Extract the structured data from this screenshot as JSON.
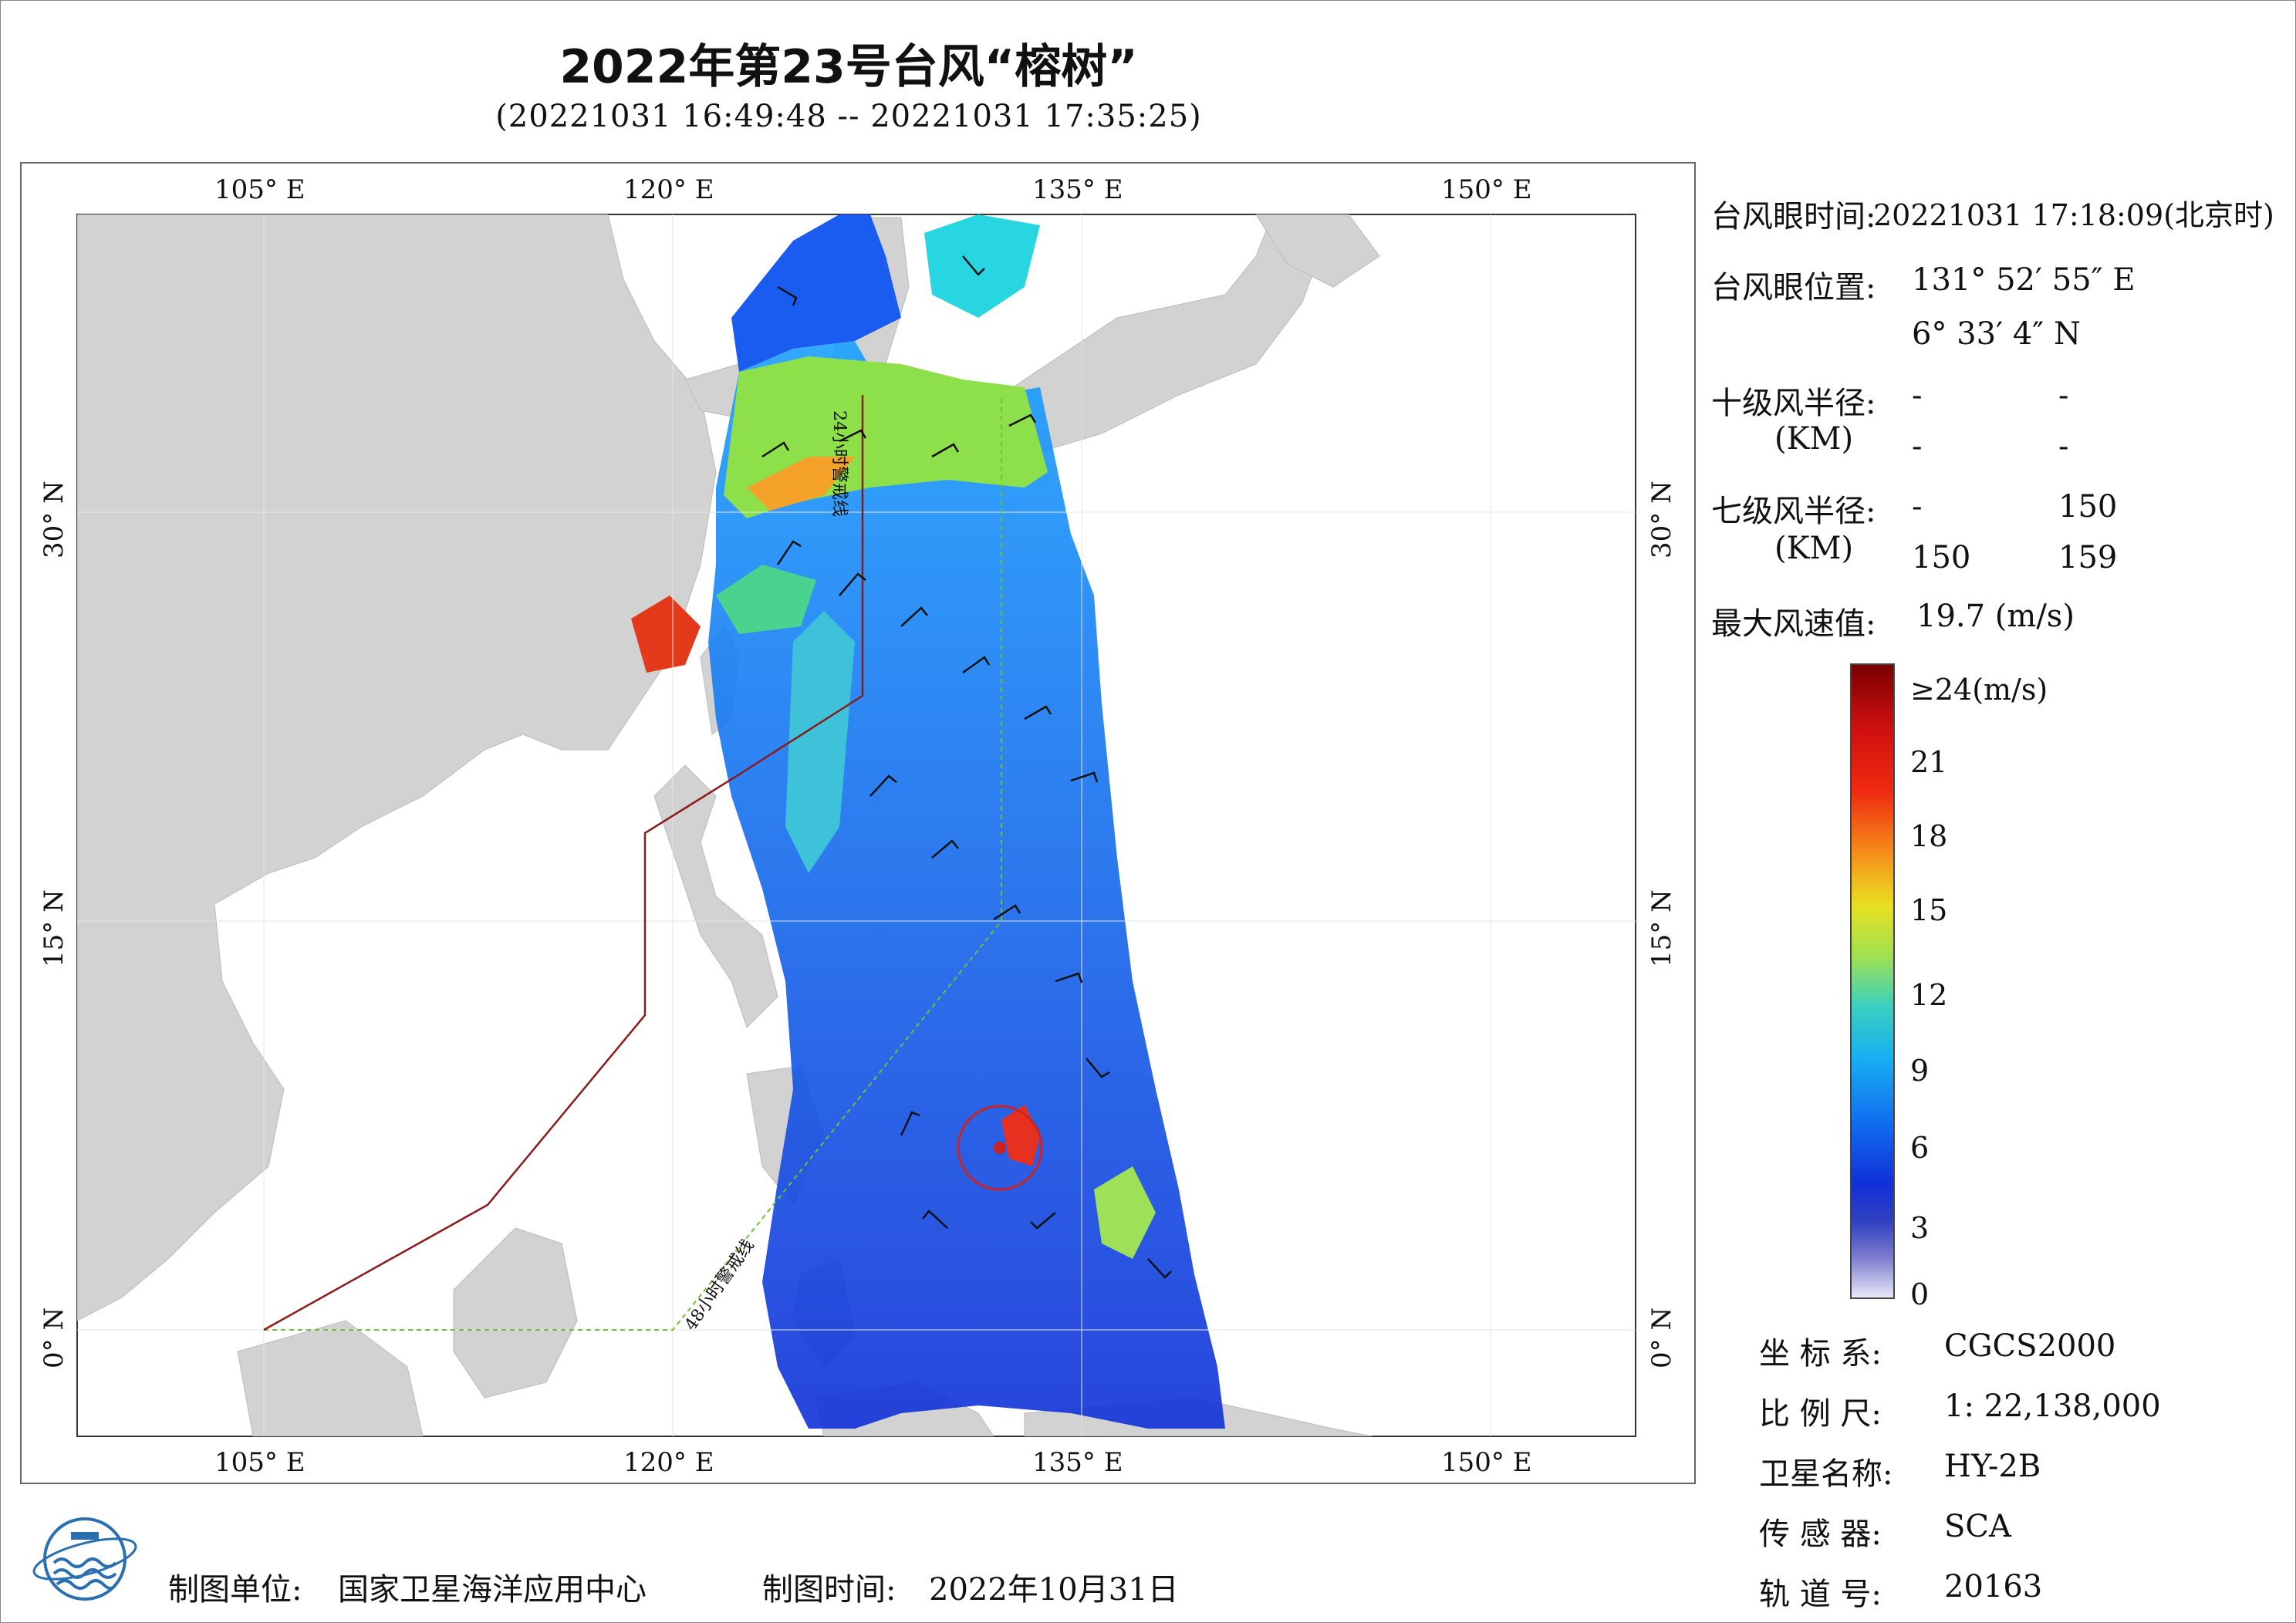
{
  "title": "2022年第23号台风“榕树”",
  "subtitle": "(20221031 16:49:48 -- 20221031 17:35:25)",
  "axes": {
    "lon_ticks": [
      "105° E",
      "120° E",
      "135° E",
      "150° E"
    ],
    "lat_ticks": [
      "30° N",
      "15° N",
      "0° N"
    ]
  },
  "map_lines": {
    "line_24h": "24小时警戒线",
    "line_48h": "48小时警戒线"
  },
  "info": {
    "eye_time_label": "台风眼时间:",
    "eye_time_value": "20221031 17:18:09(北京时)",
    "eye_pos_label": "台风眼位置:",
    "eye_lon": "131° 52′ 55″ E",
    "eye_lat": "6° 33′ 4″ N",
    "r10_label": "十级风半径:",
    "r10_unit": "(KM)",
    "r10_values": [
      "-",
      "-",
      "-",
      "-"
    ],
    "r7_label": "七级风半径:",
    "r7_unit": "(KM)",
    "r7_values": [
      "-",
      "150",
      "150",
      "159"
    ],
    "max_wind_label": "最大风速值:",
    "max_wind_value": "19.7  (m/s)"
  },
  "colorbar": {
    "labels": [
      "≥24(m/s)",
      "21",
      "18",
      "15",
      "12",
      "9",
      "6",
      "3",
      "0"
    ]
  },
  "meta": {
    "crs_label": "坐 标 系:",
    "crs_value": "CGCS2000",
    "scale_label": "比 例 尺:",
    "scale_value": "1: 22,138,000",
    "sat_label": "卫星名称:",
    "sat_value": "HY-2B",
    "sensor_label": "传 感 器:",
    "sensor_value": "SCA",
    "orbit_label": "轨 道 号:",
    "orbit_value": "20163"
  },
  "footer": {
    "org_label": "制图单位:",
    "org_value": "国家卫星海洋应用中心",
    "date_label": "制图时间:",
    "date_value": "2022年10月31日"
  },
  "colors": {
    "land": "#d2d2d2",
    "sea": "#ffffff",
    "warning_24h": "#8b1a1a",
    "warning_48h": "#6fbf3a",
    "eye": "#cc2222"
  }
}
